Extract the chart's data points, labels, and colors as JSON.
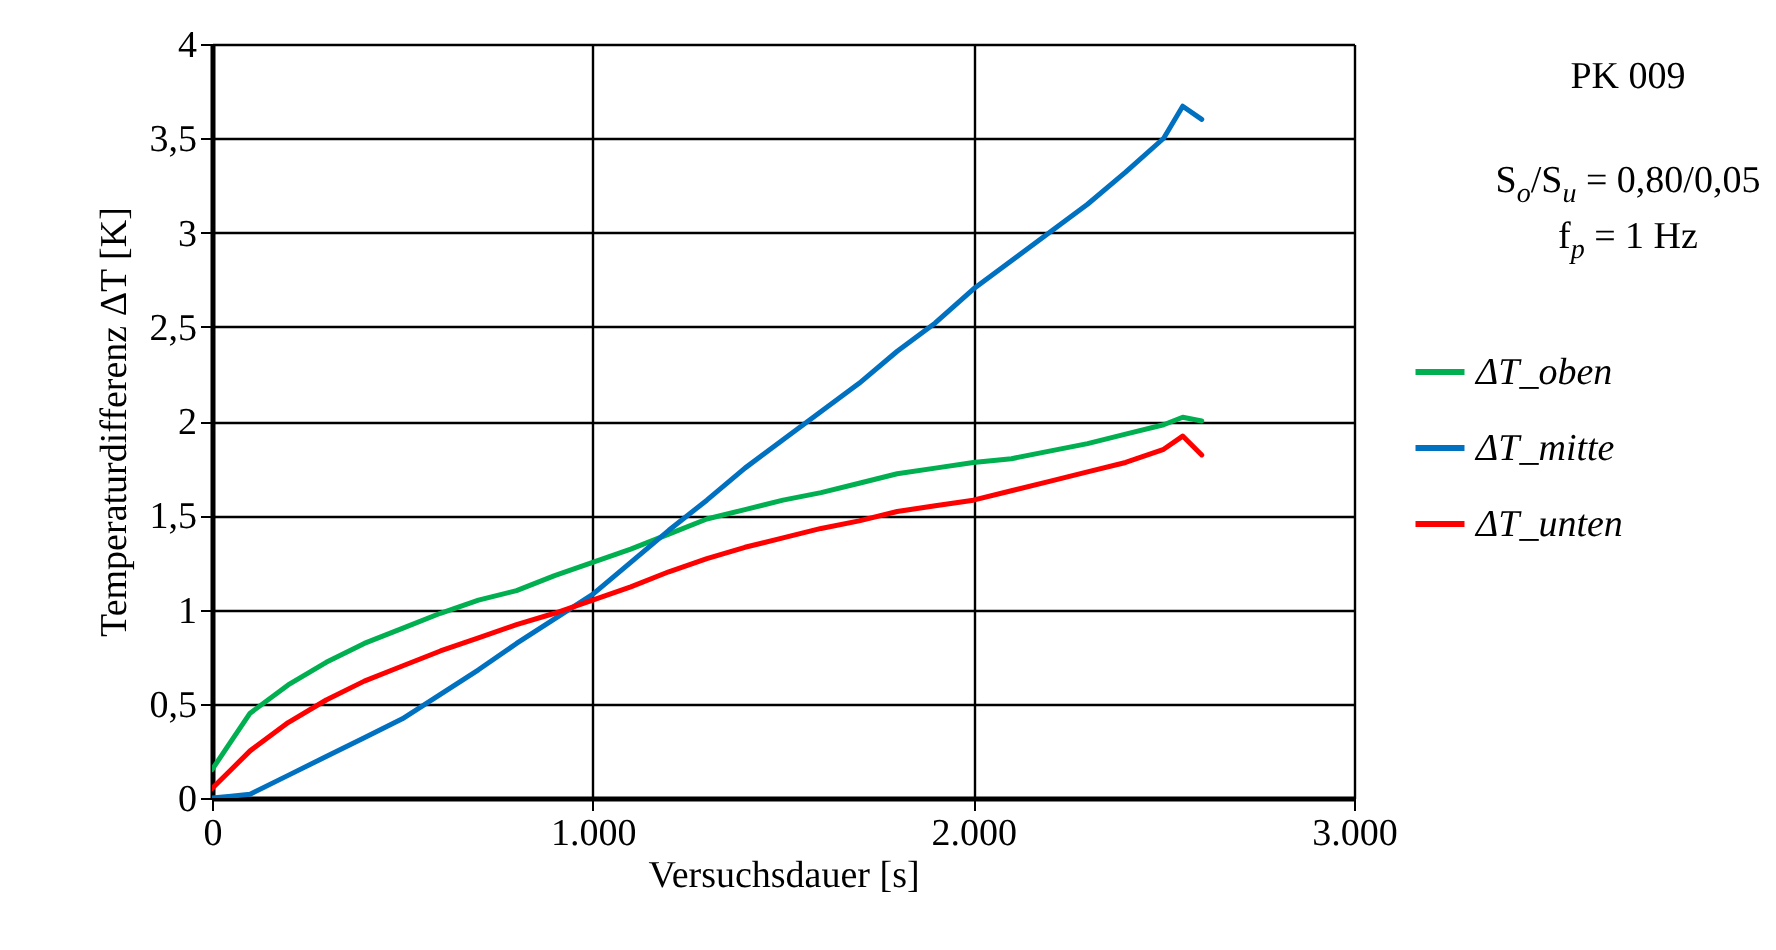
{
  "chart_data": {
    "type": "line",
    "xlabel": "Versuchsdauer [s]",
    "ylabel": "Temperaturdifferenz ΔT [K]",
    "annotations": [
      "PK 009",
      "S$_{o}$/S$_{u}$ = 0,80/0,05",
      "f$_{p}$ = 1 Hz"
    ],
    "xlim": [
      0,
      3000
    ],
    "xticks": [
      0,
      {
        "value": 1000,
        "label": "1.000"
      },
      {
        "value": 2000,
        "label": "2.000"
      },
      {
        "value": 3000,
        "label": "3.000"
      }
    ],
    "ylim": [
      0,
      4
    ],
    "yticks": [
      0,
      {
        "value": 0.5,
        "label": "0,5"
      },
      1,
      {
        "value": 1.5,
        "label": "1,5"
      },
      2,
      {
        "value": 2.5,
        "label": "2,5"
      },
      3,
      {
        "value": 3.5,
        "label": "3,5"
      },
      4
    ],
    "grid": true,
    "legend": "right",
    "marker": "none",
    "line_style": "solid",
    "x": [
      0,
      50,
      100,
      200,
      300,
      400,
      500,
      600,
      700,
      800,
      900,
      1000,
      1100,
      1200,
      1300,
      1400,
      1500,
      1600,
      1700,
      1800,
      1900,
      2000,
      2100,
      2200,
      2300,
      2400,
      2500,
      2550,
      2600
    ],
    "series": [
      {
        "name": "ΔT_oben",
        "color": "#00b050",
        "values": [
          0.15,
          0.3,
          0.45,
          0.6,
          0.72,
          0.82,
          0.9,
          0.98,
          1.05,
          1.1,
          1.18,
          1.25,
          1.32,
          1.4,
          1.48,
          1.53,
          1.58,
          1.62,
          1.67,
          1.72,
          1.75,
          1.78,
          1.8,
          1.84,
          1.88,
          1.93,
          1.98,
          2.02,
          2.0
        ]
      },
      {
        "name": "ΔT_mitte",
        "color": "#0070c0",
        "values": [
          0,
          0.01,
          0.02,
          0.12,
          0.22,
          0.32,
          0.42,
          0.55,
          0.68,
          0.82,
          0.95,
          1.08,
          1.25,
          1.42,
          1.58,
          1.75,
          1.9,
          2.05,
          2.2,
          2.37,
          2.52,
          2.7,
          2.85,
          3.0,
          3.15,
          3.32,
          3.5,
          3.67,
          3.6
        ]
      },
      {
        "name": "ΔT_unten",
        "color": "#ff0000",
        "values": [
          0.05,
          0.15,
          0.25,
          0.4,
          0.52,
          0.62,
          0.7,
          0.78,
          0.85,
          0.92,
          0.98,
          1.05,
          1.12,
          1.2,
          1.27,
          1.33,
          1.38,
          1.43,
          1.47,
          1.52,
          1.55,
          1.58,
          1.63,
          1.68,
          1.73,
          1.78,
          1.85,
          1.92,
          1.82
        ]
      }
    ]
  }
}
